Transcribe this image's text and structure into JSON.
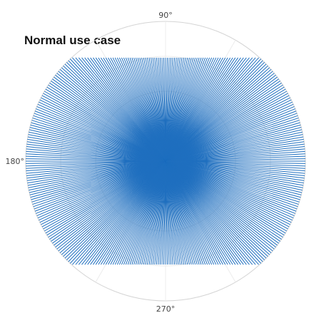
{
  "chart_data": {
    "type": "polar-line",
    "title": "Normal use case",
    "angle_ticks": [
      "90°",
      "180°",
      "270°"
    ],
    "radial_grid_levels": [
      0.25,
      0.5,
      0.75,
      1.0
    ],
    "angular_grid_step_deg": 30,
    "rays": {
      "count": 360,
      "angle_step_deg": 1,
      "radius_formula": "min(1 / |cos(theta)|, 0.74 / |sin(theta)|, 1)",
      "color": "#1f6fbf"
    }
  }
}
